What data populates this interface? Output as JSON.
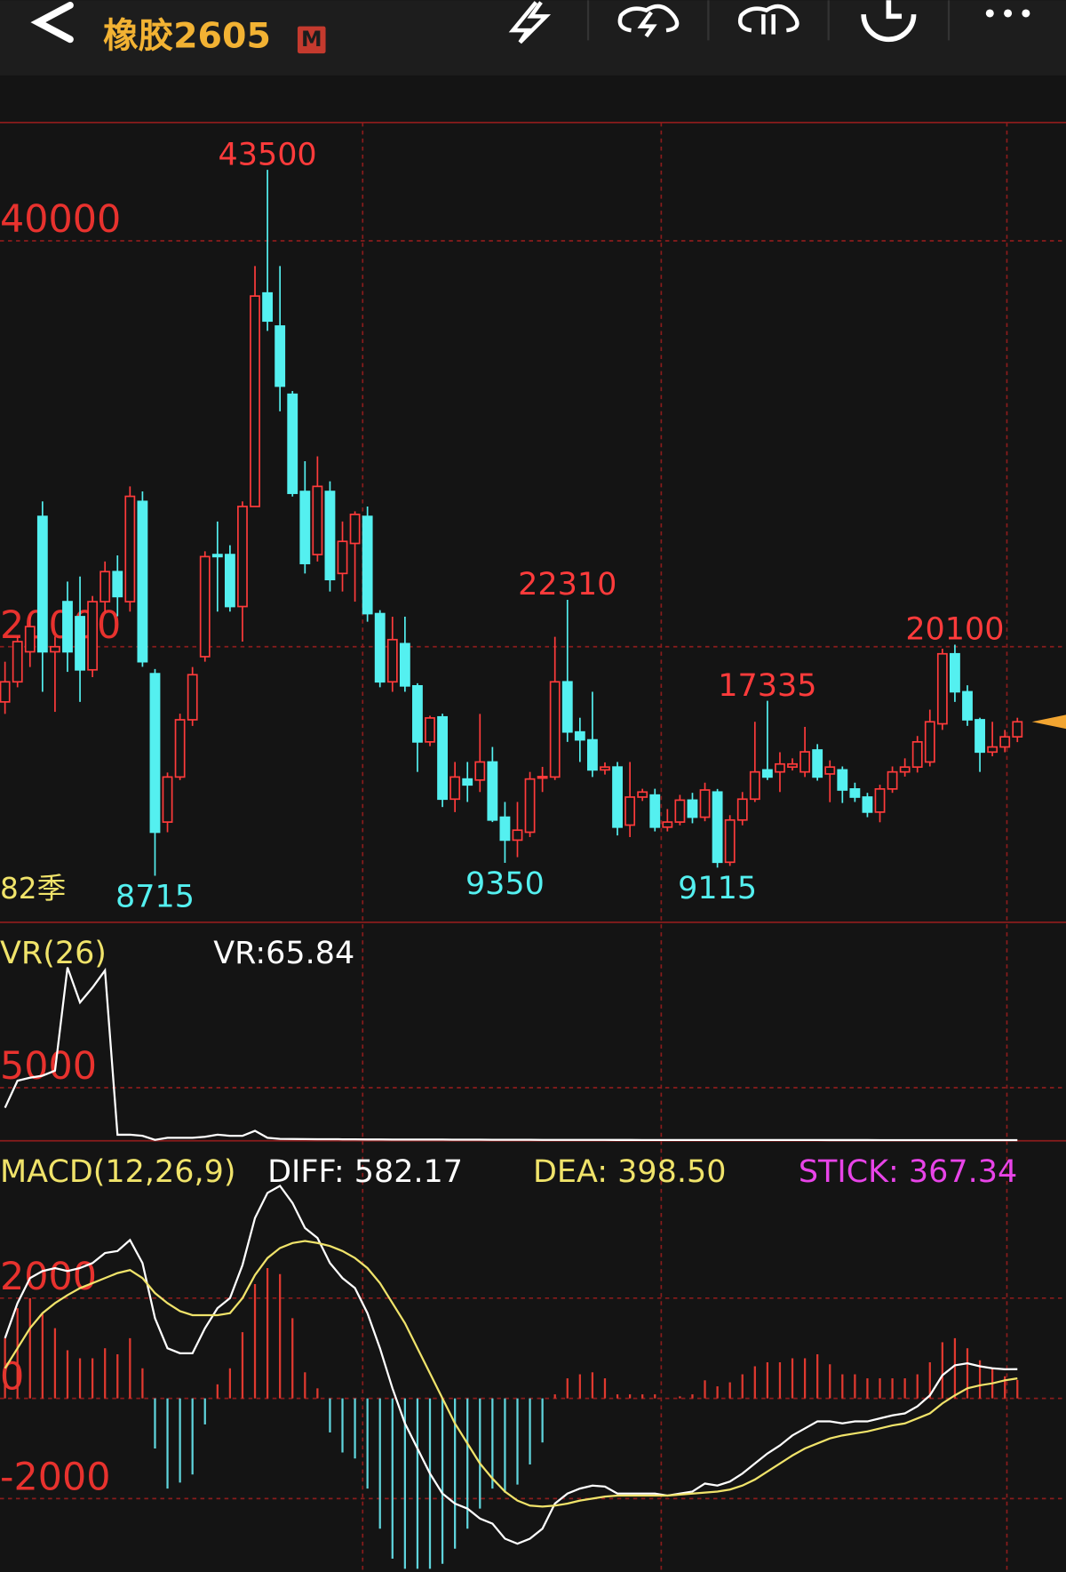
{
  "header": {
    "title": "橡胶2605",
    "badge": "M"
  },
  "chart_data": [
    {
      "type": "candlestick",
      "annotation": "82季",
      "up_color": "#ff3b3b",
      "down_color": "#54f0f0",
      "grid": true,
      "ylim": [
        6420,
        45830
      ],
      "yticks": [
        20000,
        40000
      ],
      "open": [
        17280,
        18270,
        19750,
        26420,
        19750,
        22220,
        21480,
        18860,
        22220,
        23700,
        22220,
        27160,
        18670,
        11360,
        13580,
        16400,
        19510,
        24540,
        24540,
        21980,
        26910,
        37430,
        35800,
        32440,
        27650,
        24540,
        27650,
        23610,
        25090,
        26420,
        21630,
        18270,
        20150,
        18070,
        15310,
        16540,
        12490,
        13480,
        13430,
        14320,
        11600,
        10470,
        10860,
        13580,
        13580,
        18270,
        15800,
        15410,
        13930,
        14070,
        11210,
        12590,
        12690,
        11110,
        11360,
        12440,
        11600,
        12840,
        9380,
        11460,
        12490,
        13930,
        13830,
        14070,
        13830,
        14910,
        13730,
        13930,
        12990,
        12590,
        11850,
        12990,
        13830,
        14070,
        14320,
        16200,
        19650,
        17780,
        16400,
        14810,
        15060,
        15560
      ],
      "high": [
        19260,
        20500,
        21500,
        27160,
        20500,
        23210,
        23460,
        22500,
        24200,
        24500,
        27900,
        27650,
        18900,
        13800,
        16700,
        19000,
        24700,
        26170,
        25000,
        27160,
        38760,
        43500,
        38760,
        32600,
        29140,
        29380,
        28150,
        26170,
        26670,
        26910,
        21800,
        21480,
        21480,
        18200,
        16600,
        16700,
        14320,
        14320,
        16690,
        15060,
        12350,
        12350,
        13830,
        14080,
        20490,
        22310,
        16500,
        17780,
        14300,
        14320,
        14320,
        13000,
        13000,
        12000,
        12700,
        12800,
        13300,
        12990,
        11700,
        12840,
        16300,
        17335,
        14800,
        14500,
        16050,
        15200,
        14400,
        14100,
        13300,
        12800,
        13200,
        14100,
        14500,
        15600,
        16900,
        19900,
        20100,
        18100,
        16500,
        16300,
        15900,
        16500
      ],
      "low": [
        16690,
        18000,
        19000,
        17780,
        16790,
        18760,
        17280,
        18500,
        21700,
        21500,
        21730,
        19010,
        8715,
        10860,
        13430,
        16100,
        19260,
        21730,
        21730,
        20250,
        26910,
        35560,
        31600,
        27400,
        23610,
        24200,
        22720,
        22720,
        22220,
        21230,
        18000,
        17780,
        17780,
        13830,
        15100,
        12100,
        11850,
        12350,
        12840,
        11360,
        9350,
        9630,
        10620,
        12840,
        13430,
        15310,
        14320,
        13580,
        13700,
        10700,
        10620,
        12400,
        10900,
        10900,
        11200,
        11300,
        11400,
        9115,
        9200,
        11200,
        12350,
        13430,
        12840,
        13900,
        13580,
        13400,
        12340,
        12300,
        12350,
        11600,
        11350,
        12800,
        13600,
        13800,
        14100,
        15900,
        17280,
        16100,
        13830,
        14600,
        14800,
        15300
      ],
      "close": [
        18270,
        20250,
        20990,
        19750,
        20000,
        19750,
        18860,
        22220,
        23700,
        22470,
        27410,
        19260,
        10860,
        13580,
        16400,
        18620,
        24440,
        24440,
        21980,
        26910,
        37280,
        36050,
        32840,
        27560,
        24100,
        27900,
        23310,
        25190,
        26520,
        21630,
        18270,
        20350,
        18070,
        15310,
        16490,
        12490,
        13580,
        13190,
        14320,
        11460,
        10470,
        10960,
        13480,
        13600,
        18270,
        15800,
        15410,
        13930,
        14070,
        11110,
        12590,
        12840,
        11110,
        11360,
        12440,
        11600,
        12940,
        9380,
        11460,
        12490,
        13830,
        13580,
        14220,
        14220,
        14820,
        13580,
        14070,
        12940,
        12590,
        11850,
        12990,
        13830,
        14070,
        15310,
        16300,
        19650,
        17780,
        16400,
        14810,
        15060,
        15560,
        16300
      ]
    },
    {
      "type": "line",
      "title": "VR(26)",
      "grid": true,
      "ylim": [
        0,
        20570
      ],
      "yticks": [
        5000
      ],
      "series": [
        {
          "label": "VR:65.84",
          "color": "#ffffff",
          "values": [
            3110,
            5660,
            5940,
            6130,
            6600,
            16320,
            13020,
            14430,
            16040,
            570,
            570,
            470,
            90,
            280,
            280,
            280,
            380,
            570,
            470,
            470,
            940,
            280,
            180,
            170,
            160,
            150,
            150,
            140,
            140,
            130,
            130,
            120,
            120,
            115,
            110,
            110,
            105,
            100,
            100,
            95,
            95,
            90,
            90,
            88,
            86,
            84,
            82,
            80,
            80,
            78,
            78,
            76,
            76,
            75,
            74,
            73,
            72,
            72,
            71,
            71,
            70,
            70,
            70,
            69,
            69,
            69,
            68,
            68,
            68,
            68,
            67,
            67,
            67,
            67,
            67,
            66,
            66,
            66,
            66,
            66,
            66,
            65.84
          ]
        }
      ]
    },
    {
      "type": "macd",
      "title": "MACD(12,26,9)",
      "grid": true,
      "ylim": [
        -3460,
        4900
      ],
      "yticks": [
        -2000,
        0,
        2000
      ],
      "series": [
        {
          "label": "DIFF: 582.17",
          "color": "#ffffff",
          "values": [
            1200,
            1900,
            2400,
            2540,
            2600,
            2540,
            2600,
            2700,
            2900,
            2940,
            3160,
            2700,
            1600,
            1000,
            900,
            900,
            1400,
            1800,
            2000,
            2660,
            3600,
            4100,
            4240,
            3900,
            3400,
            3200,
            2700,
            2400,
            2200,
            1700,
            1000,
            200,
            -500,
            -1000,
            -1500,
            -1900,
            -2100,
            -2200,
            -2400,
            -2500,
            -2800,
            -2900,
            -2800,
            -2600,
            -2100,
            -1900,
            -1800,
            -1740,
            -1760,
            -1900,
            -1900,
            -1900,
            -1900,
            -1940,
            -1900,
            -1860,
            -1700,
            -1740,
            -1660,
            -1500,
            -1300,
            -1100,
            -940,
            -740,
            -600,
            -460,
            -460,
            -500,
            -460,
            -460,
            -400,
            -340,
            -300,
            -160,
            60,
            460,
            660,
            700,
            640,
            600,
            580,
            582.17
          ]
        },
        {
          "label": "DEA: 398.50",
          "color": "#f0e36a",
          "values": [
            600,
            1000,
            1400,
            1700,
            1900,
            2060,
            2200,
            2300,
            2400,
            2500,
            2560,
            2400,
            2100,
            1900,
            1740,
            1660,
            1660,
            1660,
            1700,
            2000,
            2460,
            2800,
            3000,
            3100,
            3140,
            3100,
            3040,
            2940,
            2800,
            2600,
            2300,
            1900,
            1500,
            1000,
            500,
            0,
            -500,
            -900,
            -1300,
            -1600,
            -1860,
            -2040,
            -2140,
            -2160,
            -2140,
            -2100,
            -2040,
            -2000,
            -1960,
            -1940,
            -1940,
            -1940,
            -1940,
            -1940,
            -1920,
            -1900,
            -1880,
            -1860,
            -1820,
            -1740,
            -1620,
            -1460,
            -1300,
            -1140,
            -1000,
            -900,
            -800,
            -740,
            -700,
            -660,
            -600,
            -540,
            -500,
            -400,
            -300,
            -100,
            60,
            200,
            260,
            300,
            360,
            398.5
          ]
        },
        {
          "label": "STICK: 367.34",
          "color": "#e844e8",
          "style": "bar",
          "up_color": "#e0392f",
          "down_color": "#5fd4dc",
          "values": [
            1200,
            1800,
            2000,
            1680,
            1400,
            960,
            800,
            800,
            1000,
            880,
            1200,
            600,
            -1000,
            -1800,
            -1680,
            -1520,
            -520,
            280,
            600,
            1320,
            2280,
            2600,
            2480,
            1600,
            520,
            200,
            -680,
            -1080,
            -1200,
            -1800,
            -2600,
            -3200,
            -3400,
            -3400,
            -3400,
            -3300,
            -3000,
            -2600,
            -2200,
            -1800,
            -1880,
            -1720,
            -1320,
            -880,
            80,
            400,
            480,
            520,
            400,
            80,
            80,
            80,
            80,
            0,
            40,
            80,
            360,
            240,
            320,
            480,
            640,
            720,
            720,
            800,
            800,
            880,
            680,
            480,
            480,
            400,
            400,
            400,
            400,
            480,
            720,
            1120,
            1200,
            1000,
            760,
            600,
            440,
            367.34
          ]
        }
      ]
    }
  ]
}
